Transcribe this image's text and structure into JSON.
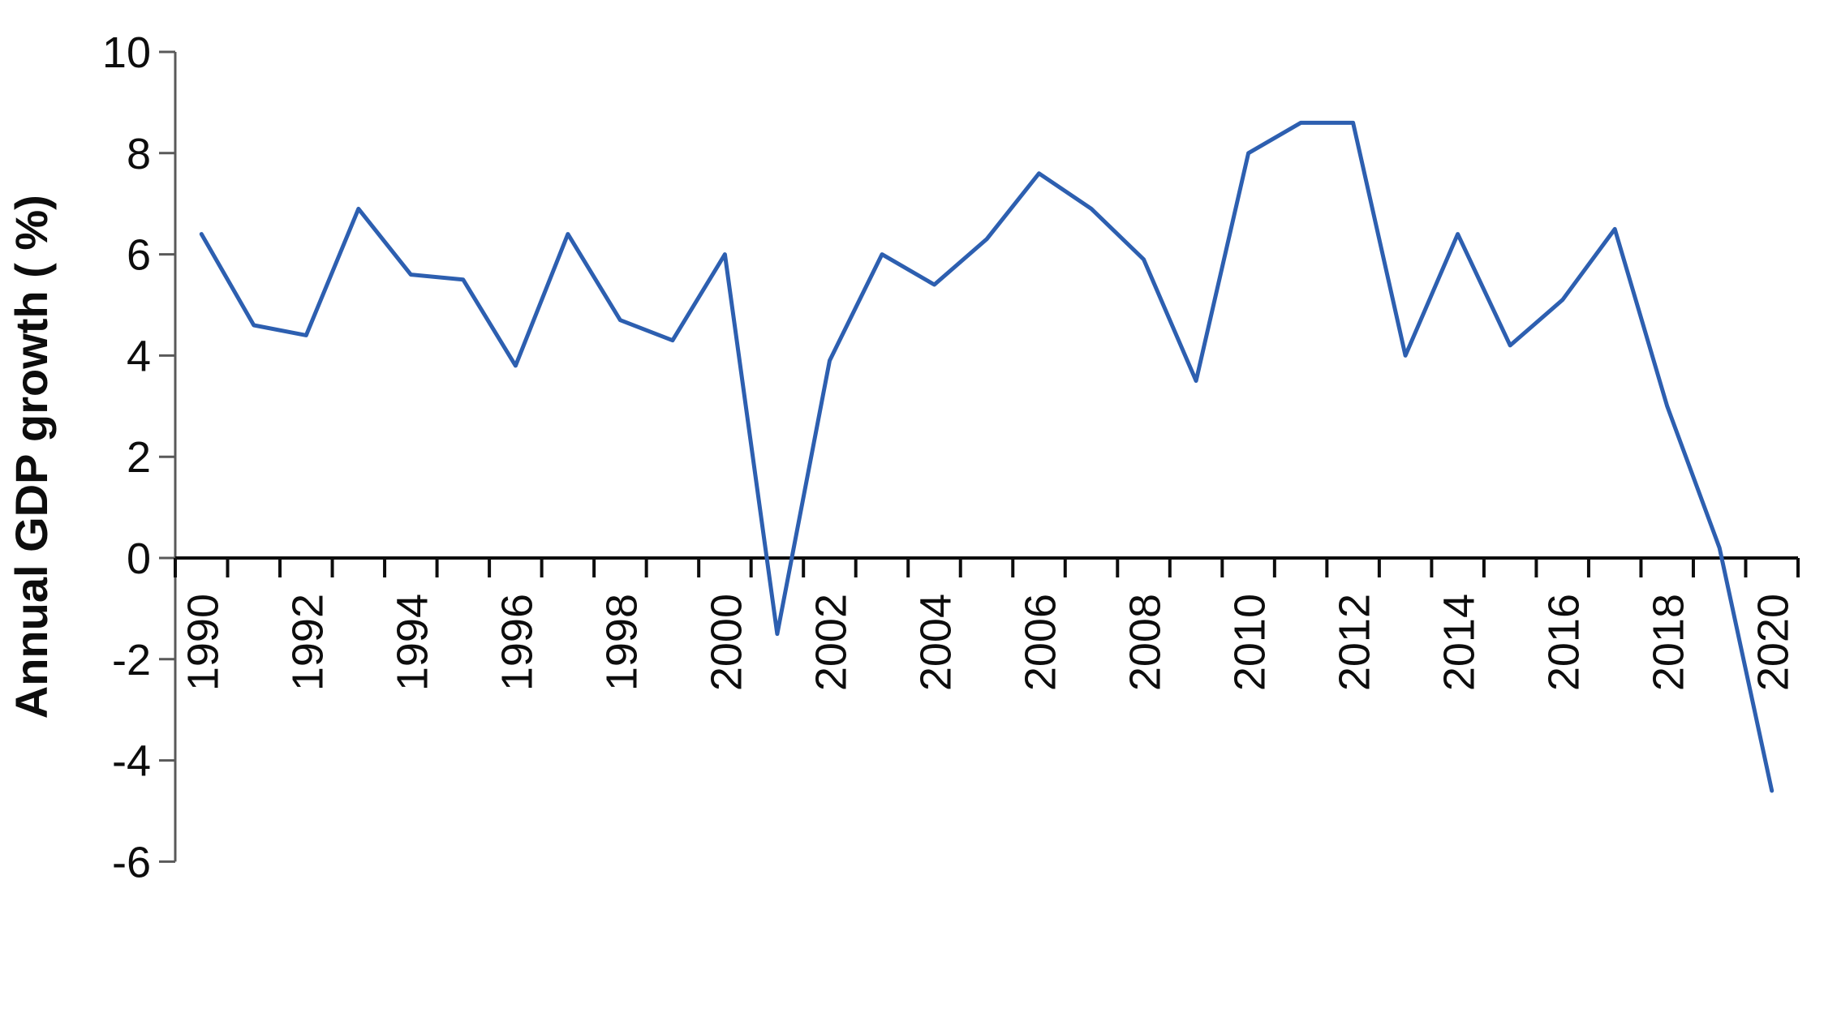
{
  "figure": {
    "background": "#ffffff",
    "y_axis_color": "#595959",
    "x_axis_color": "#0d0d0d",
    "line_color": "#2d5fb0",
    "text_color": "#0d0d0d"
  },
  "chart_data": {
    "type": "line",
    "title": "",
    "xlabel": "",
    "ylabel": "Annual GDP growth ( %)",
    "x": [
      1990,
      1991,
      1992,
      1993,
      1994,
      1995,
      1996,
      1997,
      1998,
      1999,
      2000,
      2001,
      2002,
      2003,
      2004,
      2005,
      2006,
      2007,
      2008,
      2009,
      2010,
      2011,
      2012,
      2013,
      2014,
      2015,
      2016,
      2017,
      2018,
      2019,
      2020
    ],
    "series": [
      {
        "name": "Annual GDP growth (%)",
        "values": [
          6.4,
          4.6,
          4.4,
          6.9,
          5.6,
          5.5,
          3.8,
          6.4,
          4.7,
          4.3,
          6.0,
          -1.5,
          3.9,
          6.0,
          5.4,
          6.3,
          7.6,
          6.9,
          5.9,
          3.5,
          8.0,
          8.6,
          8.6,
          4.0,
          6.4,
          4.2,
          5.1,
          6.5,
          3.0,
          0.2,
          -4.6
        ]
      }
    ],
    "ylim": [
      -6,
      10
    ],
    "yticks": [
      10,
      8,
      6,
      4,
      2,
      0,
      -2,
      -4,
      -6
    ],
    "xtick_labels": [
      "1990",
      "1992",
      "1994",
      "1996",
      "1998",
      "2000",
      "2002",
      "2004",
      "2006",
      "2008",
      "2010",
      "2012",
      "2014",
      "2016",
      "2018",
      "2020"
    ],
    "grid": false,
    "legend": false,
    "x_labels_rotated_degrees": 90,
    "points_between_ticks": true
  }
}
